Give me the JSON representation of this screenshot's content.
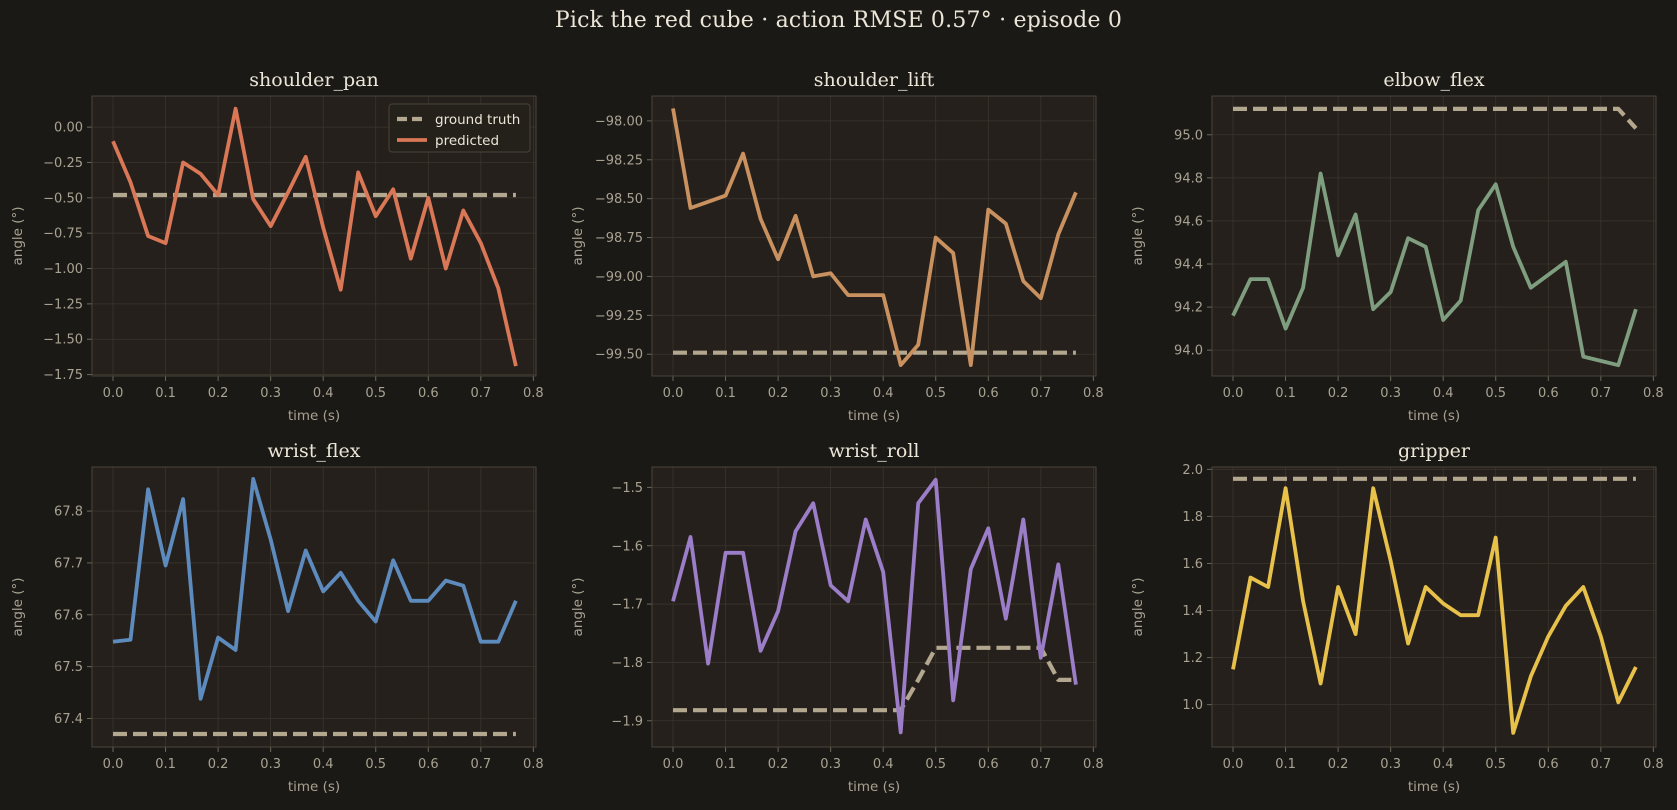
{
  "figure": {
    "title": "Pick the red cube   ·   action RMSE 0.57°   ·   episode 0",
    "background": "#1b1915",
    "axes_background": "#25201b",
    "ground_truth_color": "#b3a88f"
  },
  "chart_data": [
    {
      "type": "line",
      "title": "shoulder_pan",
      "xlabel": "time (s)",
      "ylabel": "angle (°)",
      "xlim": [
        -0.04,
        0.805
      ],
      "ylim": [
        -1.76,
        0.22
      ],
      "xticks": [
        0.0,
        0.1,
        0.2,
        0.3,
        0.4,
        0.5,
        0.6,
        0.7,
        0.8
      ],
      "xtick_labels": [
        "0.0",
        "0.1",
        "0.2",
        "0.3",
        "0.4",
        "0.5",
        "0.6",
        "0.7",
        "0.8"
      ],
      "yticks": [
        0.0,
        -0.25,
        -0.5,
        -0.75,
        -1.0,
        -1.25,
        -1.5,
        -1.75
      ],
      "ytick_labels": [
        "0.00",
        "−0.25",
        "−0.50",
        "−0.75",
        "−1.00",
        "−1.25",
        "−1.50",
        "−1.75"
      ],
      "grid": true,
      "legend": {
        "position": "top-right",
        "entries": [
          {
            "label": "ground truth",
            "style": "dashed"
          },
          {
            "label": "predicted",
            "style": "solid"
          }
        ]
      },
      "x": [
        0.0,
        0.0333,
        0.0667,
        0.1,
        0.1333,
        0.1667,
        0.2,
        0.2333,
        0.2667,
        0.3,
        0.3333,
        0.3667,
        0.4,
        0.4333,
        0.4667,
        0.5,
        0.5333,
        0.5667,
        0.6,
        0.6333,
        0.6667,
        0.7,
        0.7333,
        0.7667
      ],
      "series": [
        {
          "name": "ground truth",
          "color": "#b3a88f",
          "values": [
            -0.48,
            -0.48,
            -0.48,
            -0.48,
            -0.48,
            -0.48,
            -0.48,
            -0.48,
            -0.48,
            -0.48,
            -0.48,
            -0.48,
            -0.48,
            -0.48,
            -0.48,
            -0.48,
            -0.48,
            -0.48,
            -0.48,
            -0.48,
            -0.48,
            -0.48,
            -0.48,
            -0.48
          ]
        },
        {
          "name": "predicted",
          "color": "#d97756",
          "values": [
            -0.1,
            -0.39,
            -0.77,
            -0.82,
            -0.25,
            -0.33,
            -0.48,
            0.13,
            -0.51,
            -0.7,
            -0.46,
            -0.21,
            -0.71,
            -1.15,
            -0.32,
            -0.63,
            -0.44,
            -0.93,
            -0.5,
            -1.0,
            -0.59,
            -0.82,
            -1.14,
            -1.69
          ]
        }
      ]
    },
    {
      "type": "line",
      "title": "shoulder_lift",
      "xlabel": "time (s)",
      "ylabel": "angle (°)",
      "xlim": [
        -0.04,
        0.805
      ],
      "ylim": [
        -99.64,
        -97.84
      ],
      "xticks": [
        0.0,
        0.1,
        0.2,
        0.3,
        0.4,
        0.5,
        0.6,
        0.7,
        0.8
      ],
      "xtick_labels": [
        "0.0",
        "0.1",
        "0.2",
        "0.3",
        "0.4",
        "0.5",
        "0.6",
        "0.7",
        "0.8"
      ],
      "yticks": [
        -98.0,
        -98.25,
        -98.5,
        -98.75,
        -99.0,
        -99.25,
        -99.5
      ],
      "ytick_labels": [
        "−98.00",
        "−98.25",
        "−98.50",
        "−98.75",
        "−99.00",
        "−99.25",
        "−99.50"
      ],
      "grid": true,
      "x": [
        0.0,
        0.0333,
        0.0667,
        0.1,
        0.1333,
        0.1667,
        0.2,
        0.2333,
        0.2667,
        0.3,
        0.3333,
        0.3667,
        0.4,
        0.4333,
        0.4667,
        0.5,
        0.5333,
        0.5667,
        0.6,
        0.6333,
        0.6667,
        0.7,
        0.7333,
        0.7667
      ],
      "series": [
        {
          "name": "ground truth",
          "color": "#b3a88f",
          "values": [
            -99.49,
            -99.49,
            -99.49,
            -99.49,
            -99.49,
            -99.49,
            -99.49,
            -99.49,
            -99.49,
            -99.49,
            -99.49,
            -99.49,
            -99.49,
            -99.49,
            -99.49,
            -99.49,
            -99.49,
            -99.49,
            -99.49,
            -99.49,
            -99.49,
            -99.49,
            -99.49,
            -99.49
          ]
        },
        {
          "name": "predicted",
          "color": "#c8915f",
          "values": [
            -97.92,
            -98.56,
            -98.52,
            -98.48,
            -98.21,
            -98.63,
            -98.89,
            -98.61,
            -99.0,
            -98.98,
            -99.12,
            -99.12,
            -99.12,
            -99.57,
            -99.44,
            -98.75,
            -98.85,
            -99.57,
            -98.57,
            -98.66,
            -99.03,
            -99.14,
            -98.73,
            -98.46
          ]
        }
      ]
    },
    {
      "type": "line",
      "title": "elbow_flex",
      "xlabel": "time (s)",
      "ylabel": "angle (°)",
      "xlim": [
        -0.04,
        0.805
      ],
      "ylim": [
        93.88,
        95.18
      ],
      "xticks": [
        0.0,
        0.1,
        0.2,
        0.3,
        0.4,
        0.5,
        0.6,
        0.7,
        0.8
      ],
      "xtick_labels": [
        "0.0",
        "0.1",
        "0.2",
        "0.3",
        "0.4",
        "0.5",
        "0.6",
        "0.7",
        "0.8"
      ],
      "yticks": [
        94.0,
        94.2,
        94.4,
        94.6,
        94.8,
        95.0
      ],
      "ytick_labels": [
        "94.0",
        "94.2",
        "94.4",
        "94.6",
        "94.8",
        "95.0"
      ],
      "grid": true,
      "x": [
        0.0,
        0.0333,
        0.0667,
        0.1,
        0.1333,
        0.1667,
        0.2,
        0.2333,
        0.2667,
        0.3,
        0.3333,
        0.3667,
        0.4,
        0.4333,
        0.4667,
        0.5,
        0.5333,
        0.5667,
        0.6,
        0.6333,
        0.6667,
        0.7,
        0.7333,
        0.7667
      ],
      "series": [
        {
          "name": "ground truth",
          "color": "#b3a88f",
          "values": [
            95.12,
            95.12,
            95.12,
            95.12,
            95.12,
            95.12,
            95.12,
            95.12,
            95.12,
            95.12,
            95.12,
            95.12,
            95.12,
            95.12,
            95.12,
            95.12,
            95.12,
            95.12,
            95.12,
            95.12,
            95.12,
            95.12,
            95.12,
            95.03
          ]
        },
        {
          "name": "predicted",
          "color": "#7f9e80",
          "values": [
            94.16,
            94.33,
            94.33,
            94.1,
            94.29,
            94.82,
            94.44,
            94.63,
            94.19,
            94.27,
            94.52,
            94.48,
            94.14,
            94.23,
            94.65,
            94.77,
            94.48,
            94.29,
            94.35,
            94.41,
            93.97,
            93.95,
            93.93,
            94.19
          ]
        }
      ]
    },
    {
      "type": "line",
      "title": "wrist_flex",
      "xlabel": "time (s)",
      "ylabel": "angle (°)",
      "xlim": [
        -0.04,
        0.805
      ],
      "ylim": [
        67.345,
        67.885
      ],
      "xticks": [
        0.0,
        0.1,
        0.2,
        0.3,
        0.4,
        0.5,
        0.6,
        0.7,
        0.8
      ],
      "xtick_labels": [
        "0.0",
        "0.1",
        "0.2",
        "0.3",
        "0.4",
        "0.5",
        "0.6",
        "0.7",
        "0.8"
      ],
      "yticks": [
        67.4,
        67.5,
        67.6,
        67.7,
        67.8
      ],
      "ytick_labels": [
        "67.4",
        "67.5",
        "67.6",
        "67.7",
        "67.8"
      ],
      "grid": true,
      "x": [
        0.0,
        0.0333,
        0.0667,
        0.1,
        0.1333,
        0.1667,
        0.2,
        0.2333,
        0.2667,
        0.3,
        0.3333,
        0.3667,
        0.4,
        0.4333,
        0.4667,
        0.5,
        0.5333,
        0.5667,
        0.6,
        0.6333,
        0.6667,
        0.7,
        0.7333,
        0.7667
      ],
      "series": [
        {
          "name": "ground truth",
          "color": "#b3a88f",
          "values": [
            67.37,
            67.37,
            67.37,
            67.37,
            67.37,
            67.37,
            67.37,
            67.37,
            67.37,
            67.37,
            67.37,
            67.37,
            67.37,
            67.37,
            67.37,
            67.37,
            67.37,
            67.37,
            67.37,
            67.37,
            67.37,
            67.37,
            67.37,
            67.37
          ]
        },
        {
          "name": "predicted",
          "color": "#5d8bbd",
          "values": [
            67.548,
            67.552,
            67.842,
            67.695,
            67.823,
            67.438,
            67.556,
            67.532,
            67.862,
            67.745,
            67.607,
            67.724,
            67.645,
            67.681,
            67.627,
            67.587,
            67.705,
            67.627,
            67.627,
            67.666,
            67.656,
            67.548,
            67.548,
            67.627
          ]
        }
      ]
    },
    {
      "type": "line",
      "title": "wrist_roll",
      "xlabel": "time (s)",
      "ylabel": "angle (°)",
      "xlim": [
        -0.04,
        0.805
      ],
      "ylim": [
        -1.945,
        -1.465
      ],
      "xticks": [
        0.0,
        0.1,
        0.2,
        0.3,
        0.4,
        0.5,
        0.6,
        0.7,
        0.8
      ],
      "xtick_labels": [
        "0.0",
        "0.1",
        "0.2",
        "0.3",
        "0.4",
        "0.5",
        "0.6",
        "0.7",
        "0.8"
      ],
      "yticks": [
        -1.5,
        -1.6,
        -1.7,
        -1.8,
        -1.9
      ],
      "ytick_labels": [
        "−1.5",
        "−1.6",
        "−1.7",
        "−1.8",
        "−1.9"
      ],
      "grid": true,
      "x": [
        0.0,
        0.0333,
        0.0667,
        0.1,
        0.1333,
        0.1667,
        0.2,
        0.2333,
        0.2667,
        0.3,
        0.3333,
        0.3667,
        0.4,
        0.4333,
        0.4667,
        0.5,
        0.5333,
        0.5667,
        0.6,
        0.6333,
        0.6667,
        0.7,
        0.7333,
        0.7667
      ],
      "series": [
        {
          "name": "ground truth",
          "color": "#b3a88f",
          "values": [
            -1.882,
            -1.882,
            -1.882,
            -1.882,
            -1.882,
            -1.882,
            -1.882,
            -1.882,
            -1.882,
            -1.882,
            -1.882,
            -1.882,
            -1.882,
            -1.882,
            -1.83,
            -1.775,
            -1.775,
            -1.775,
            -1.775,
            -1.775,
            -1.775,
            -1.775,
            -1.83,
            -1.83
          ]
        },
        {
          "name": "predicted",
          "color": "#9b7dc8",
          "values": [
            -1.695,
            -1.585,
            -1.802,
            -1.612,
            -1.612,
            -1.78,
            -1.712,
            -1.575,
            -1.527,
            -1.668,
            -1.695,
            -1.555,
            -1.645,
            -1.92,
            -1.527,
            -1.487,
            -1.865,
            -1.64,
            -1.57,
            -1.725,
            -1.555,
            -1.792,
            -1.632,
            -1.838
          ]
        }
      ]
    },
    {
      "type": "line",
      "title": "gripper",
      "xlabel": "time (s)",
      "ylabel": "angle (°)",
      "xlim": [
        -0.04,
        0.805
      ],
      "ylim": [
        0.82,
        2.01
      ],
      "xticks": [
        0.0,
        0.1,
        0.2,
        0.3,
        0.4,
        0.5,
        0.6,
        0.7,
        0.8
      ],
      "xtick_labels": [
        "0.0",
        "0.1",
        "0.2",
        "0.3",
        "0.4",
        "0.5",
        "0.6",
        "0.7",
        "0.8"
      ],
      "yticks": [
        1.0,
        1.2,
        1.4,
        1.6,
        1.8,
        2.0
      ],
      "ytick_labels": [
        "1.0",
        "1.2",
        "1.4",
        "1.6",
        "1.8",
        "2.0"
      ],
      "grid": true,
      "x": [
        0.0,
        0.0333,
        0.0667,
        0.1,
        0.1333,
        0.1667,
        0.2,
        0.2333,
        0.2667,
        0.3,
        0.3333,
        0.3667,
        0.4,
        0.4333,
        0.4667,
        0.5,
        0.5333,
        0.5667,
        0.6,
        0.6333,
        0.6667,
        0.7,
        0.7333,
        0.7667
      ],
      "series": [
        {
          "name": "ground truth",
          "color": "#b3a88f",
          "values": [
            1.96,
            1.96,
            1.96,
            1.96,
            1.96,
            1.96,
            1.96,
            1.96,
            1.96,
            1.96,
            1.96,
            1.96,
            1.96,
            1.96,
            1.96,
            1.96,
            1.96,
            1.96,
            1.96,
            1.96,
            1.96,
            1.96,
            1.96,
            1.96
          ]
        },
        {
          "name": "predicted",
          "color": "#e8c14a",
          "values": [
            1.15,
            1.54,
            1.5,
            1.92,
            1.44,
            1.09,
            1.5,
            1.3,
            1.92,
            1.61,
            1.26,
            1.5,
            1.43,
            1.38,
            1.38,
            1.71,
            0.88,
            1.12,
            1.29,
            1.42,
            1.5,
            1.29,
            1.01,
            1.16
          ]
        }
      ]
    }
  ]
}
